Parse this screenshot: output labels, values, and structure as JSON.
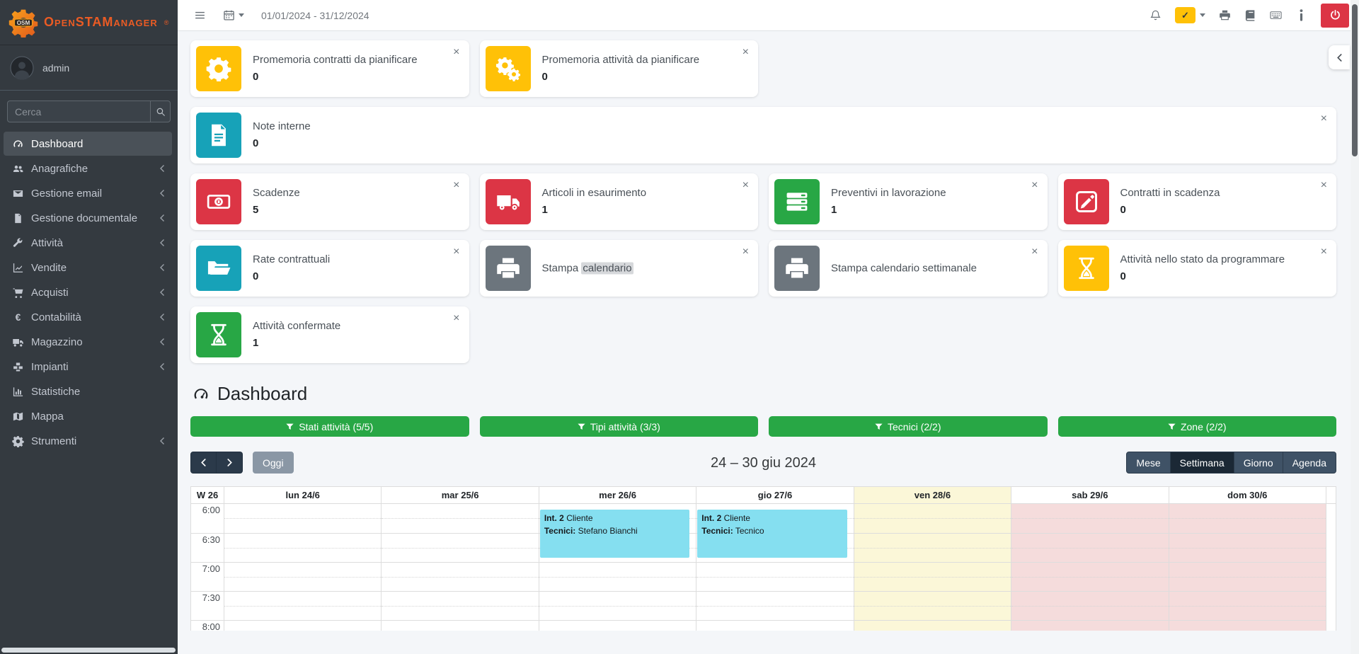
{
  "topbar": {
    "date_range": "01/01/2024 - 31/12/2024",
    "status_check": "✓"
  },
  "sidebar": {
    "logo_badge": "OSM",
    "logo_text": "OpenSTAManager",
    "logo_reg": "®",
    "user": "admin",
    "search_placeholder": "Cerca",
    "items": [
      {
        "label": "Dashboard",
        "icon": "tachometer",
        "active": true,
        "has_submenu": false
      },
      {
        "label": "Anagrafiche",
        "icon": "users",
        "has_submenu": true
      },
      {
        "label": "Gestione email",
        "icon": "envelope",
        "has_submenu": true
      },
      {
        "label": "Gestione documentale",
        "icon": "file",
        "has_submenu": true
      },
      {
        "label": "Attività",
        "icon": "wrench",
        "has_submenu": true
      },
      {
        "label": "Vendite",
        "icon": "chart-line",
        "has_submenu": true
      },
      {
        "label": "Acquisti",
        "icon": "cart",
        "has_submenu": true
      },
      {
        "label": "Contabilità",
        "icon": "euro",
        "has_submenu": true
      },
      {
        "label": "Magazzino",
        "icon": "truck",
        "has_submenu": true
      },
      {
        "label": "Impianti",
        "icon": "cubes",
        "has_submenu": true
      },
      {
        "label": "Statistiche",
        "icon": "bar-chart",
        "has_submenu": false
      },
      {
        "label": "Mappa",
        "icon": "map",
        "has_submenu": false
      },
      {
        "label": "Strumenti",
        "icon": "gear",
        "has_submenu": true
      }
    ]
  },
  "glyphs": {
    "close": "×"
  },
  "widgets": [
    {
      "label": "Promemoria contratti da pianificare",
      "value": "0",
      "color": "#ffc107",
      "icon": "gear"
    },
    {
      "label": "Promemoria attività da pianificare",
      "value": "0",
      "color": "#ffc107",
      "icon": "gears"
    },
    {
      "label": "Note interne",
      "value": "0",
      "color": "#17a2b8",
      "icon": "file-lines",
      "wide": true
    },
    {
      "label": "Scadenze",
      "value": "5",
      "color": "#dc3545",
      "icon": "banknote"
    },
    {
      "label": "Articoli in esaurimento",
      "value": "1",
      "color": "#dc3545",
      "icon": "truck"
    },
    {
      "label": "Preventivi in lavorazione",
      "value": "1",
      "color": "#28a745",
      "icon": "server"
    },
    {
      "label": "Contratti in scadenza",
      "value": "0",
      "color": "#dc3545",
      "icon": "pen-square"
    },
    {
      "label": "Rate contrattuali",
      "value": "0",
      "color": "#17a2b8",
      "icon": "folder-open"
    },
    {
      "label": "Stampa calendario",
      "highlight": "calendario",
      "color": "#6c757d",
      "icon": "print"
    },
    {
      "label": "Stampa calendario settimanale",
      "color": "#6c757d",
      "icon": "print"
    },
    {
      "label": "Attività nello stato da programmare",
      "value": "0",
      "color": "#ffc107",
      "icon": "hourglass"
    },
    {
      "label": "Attività confermate",
      "value": "1",
      "color": "#28a745",
      "icon": "hourglass"
    }
  ],
  "dashboard": {
    "title": "Dashboard",
    "filters": [
      "Stati attività (5/5)",
      "Tipi attività (3/3)",
      "Tecnici (2/2)",
      "Zone (2/2)"
    ]
  },
  "calendar": {
    "today_label": "Oggi",
    "title": "24 – 30 giu 2024",
    "views": [
      "Mese",
      "Settimana",
      "Giorno",
      "Agenda"
    ],
    "active_view": "Settimana",
    "week_label": "W 26",
    "days": [
      {
        "label": "lun 24/6",
        "type": "normal"
      },
      {
        "label": "mar 25/6",
        "type": "normal"
      },
      {
        "label": "mer 26/6",
        "type": "normal"
      },
      {
        "label": "gio 27/6",
        "type": "normal"
      },
      {
        "label": "ven 28/6",
        "type": "today"
      },
      {
        "label": "sab 29/6",
        "type": "weekend"
      },
      {
        "label": "dom 30/6",
        "type": "weekend"
      }
    ],
    "times": [
      "6:00",
      "6:30",
      "7:00",
      "7:30",
      "8:00"
    ],
    "events": [
      {
        "day": "mer 26/6",
        "day_index": 2,
        "ref": "Int. 2",
        "customer": "Cliente",
        "tech_label": "Tecnici:",
        "technicians": "Stefano Bianchi"
      },
      {
        "day": "gio 27/6",
        "day_index": 3,
        "ref": "Int. 2",
        "customer": "Cliente",
        "tech_label": "Tecnici:",
        "technicians": "Tecnico"
      }
    ]
  },
  "colors": {
    "warning": "#ffc107",
    "info": "#17a2b8",
    "danger": "#dc3545",
    "success": "#28a745",
    "secondary": "#6c757d",
    "sidebar": "#343a40",
    "event": "#85dff0",
    "today_bg": "#fbf7d8",
    "weekend_bg": "#f5dcdc"
  }
}
